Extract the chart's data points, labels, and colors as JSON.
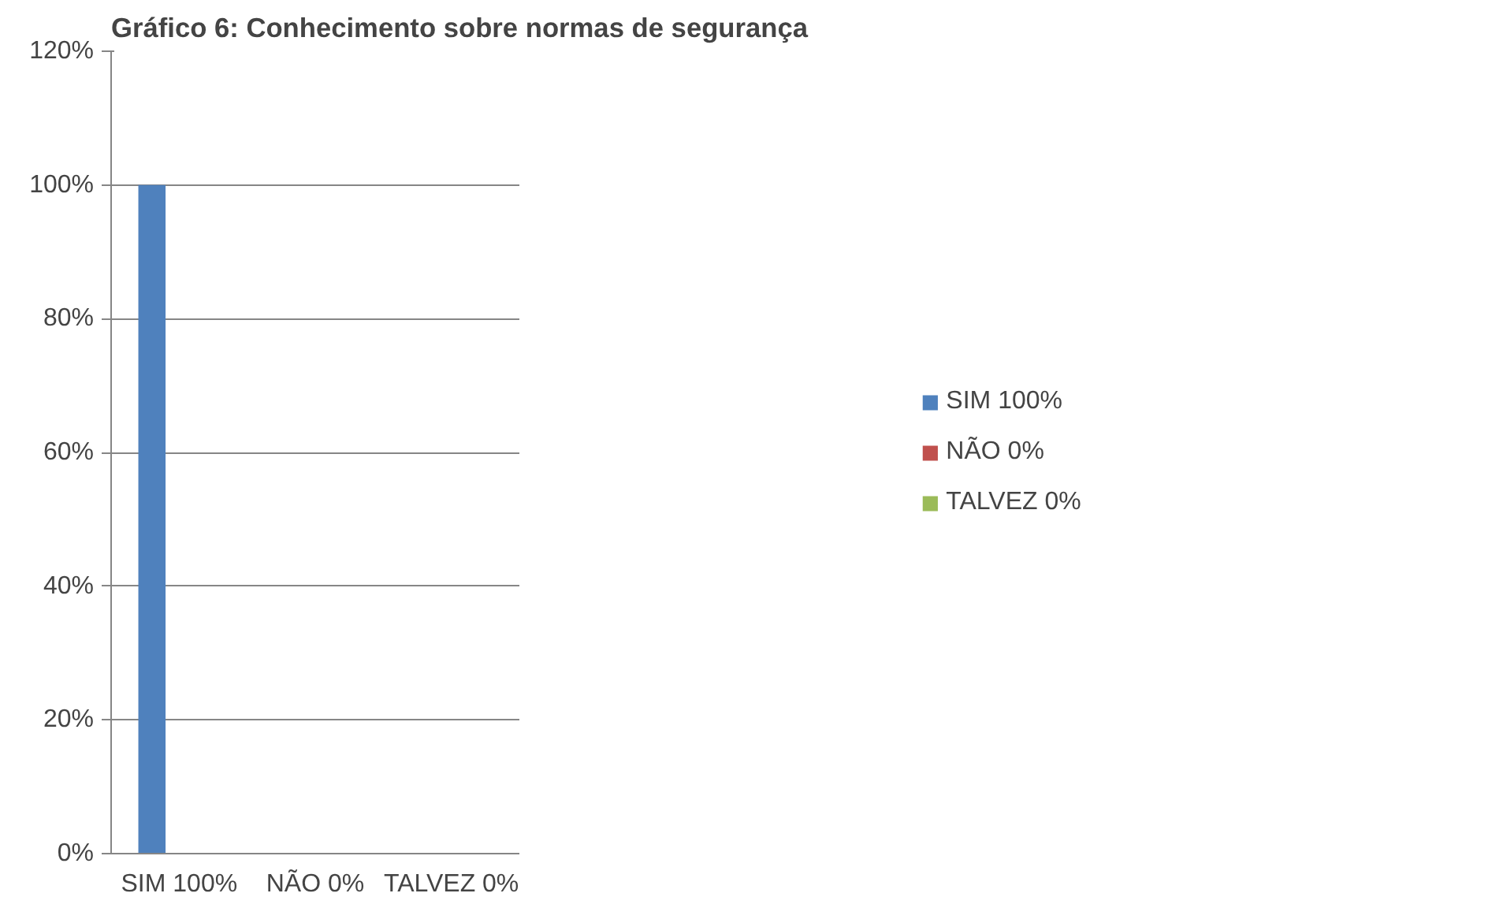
{
  "chart_data": {
    "type": "bar",
    "title": "Gráfico 6: Conhecimento sobre normas de segurança",
    "categories": [
      "SIM 100%",
      "NÃO 0%",
      "TALVEZ 0%"
    ],
    "series": [
      {
        "name": "SIM 100%",
        "color": "#4f81bd",
        "values": [
          100,
          null,
          null
        ]
      },
      {
        "name": "NÃO 0%",
        "color": "#c0504d",
        "values": [
          null,
          0,
          null
        ]
      },
      {
        "name": "TALVEZ 0%",
        "color": "#9bbb59",
        "values": [
          null,
          null,
          0
        ]
      }
    ],
    "ylim": [
      0,
      120
    ],
    "yticks": [
      {
        "value": 0,
        "label": "0%"
      },
      {
        "value": 20,
        "label": "20%"
      },
      {
        "value": 40,
        "label": "40%"
      },
      {
        "value": 60,
        "label": "60%"
      },
      {
        "value": 80,
        "label": "80%"
      },
      {
        "value": 100,
        "label": "100%"
      },
      {
        "value": 120,
        "label": "120%"
      }
    ],
    "grid": "y",
    "legend": "right"
  }
}
